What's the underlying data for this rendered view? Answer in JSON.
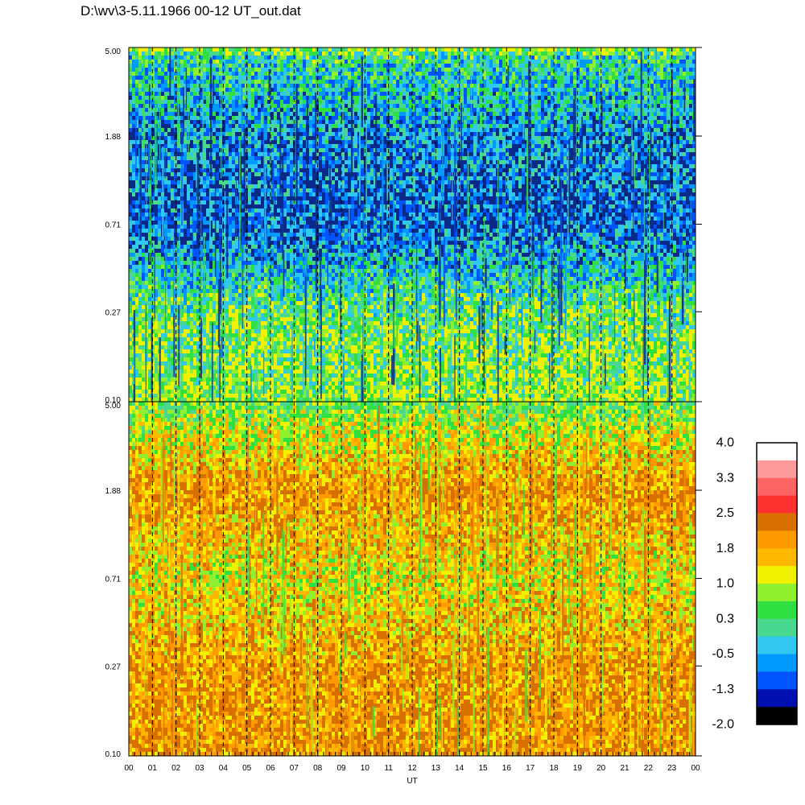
{
  "title": "D:\\wv\\3-5.11.1966  00-12 UT_out.dat",
  "chart_data": [
    {
      "type": "heatmap",
      "panel": "top",
      "y_scale": "log",
      "ylim": [
        0.1,
        5.0
      ],
      "y_ticks": [
        "5.00",
        "1.88",
        "0.71",
        "0.27",
        "0.10"
      ],
      "xlim": [
        0,
        24
      ],
      "colors": [
        "#0a2a8a",
        "#0055ff",
        "#0099ff",
        "#30c8f0",
        "#48d890",
        "#30e040",
        "#90f030",
        "#f0f000"
      ],
      "value_profile": [
        {
          "y": 0.1,
          "v": 0.6
        },
        {
          "y": 0.27,
          "v": 0.3
        },
        {
          "y": 0.71,
          "v": -0.9
        },
        {
          "y": 1.88,
          "v": -0.6
        },
        {
          "y": 4.5,
          "v": 0.0
        },
        {
          "y": 5.0,
          "v": 0.6
        }
      ]
    },
    {
      "type": "heatmap",
      "panel": "bottom",
      "y_scale": "log",
      "ylim": [
        0.1,
        5.0
      ],
      "y_ticks": [
        "5.00",
        "1.88",
        "0.71",
        "0.27",
        "0.10"
      ],
      "xlim": [
        0,
        24
      ],
      "x_ticks": [
        "00",
        "01",
        "02",
        "03",
        "04",
        "05",
        "06",
        "07",
        "08",
        "09",
        "10",
        "11",
        "12",
        "13",
        "14",
        "15",
        "16",
        "17",
        "18",
        "19",
        "20",
        "21",
        "22",
        "23",
        "00"
      ],
      "xlabel": "UT",
      "colors": [
        "#48d890",
        "#30e040",
        "#90f030",
        "#f0f000",
        "#ffb800",
        "#ff9a00",
        "#d87000"
      ],
      "value_profile": [
        {
          "y": 0.1,
          "v": 1.9
        },
        {
          "y": 0.27,
          "v": 1.8
        },
        {
          "y": 0.71,
          "v": 1.2
        },
        {
          "y": 1.88,
          "v": 1.9
        },
        {
          "y": 4.5,
          "v": 0.7
        },
        {
          "y": 5.0,
          "v": 0.5
        }
      ]
    }
  ],
  "colorbar": {
    "labels": [
      "4.0",
      "3.3",
      "2.5",
      "1.8",
      "1.0",
      "0.3",
      "-0.5",
      "-1.3",
      "-2.0"
    ],
    "colors": [
      "#ffffff",
      "#ff9a9a",
      "#ff6464",
      "#ff3030",
      "#d87000",
      "#ff9a00",
      "#ffb800",
      "#f0f000",
      "#90f030",
      "#30e040",
      "#48d890",
      "#30c8f0",
      "#0099ff",
      "#0055ff",
      "#0010b0",
      "#000000"
    ]
  }
}
